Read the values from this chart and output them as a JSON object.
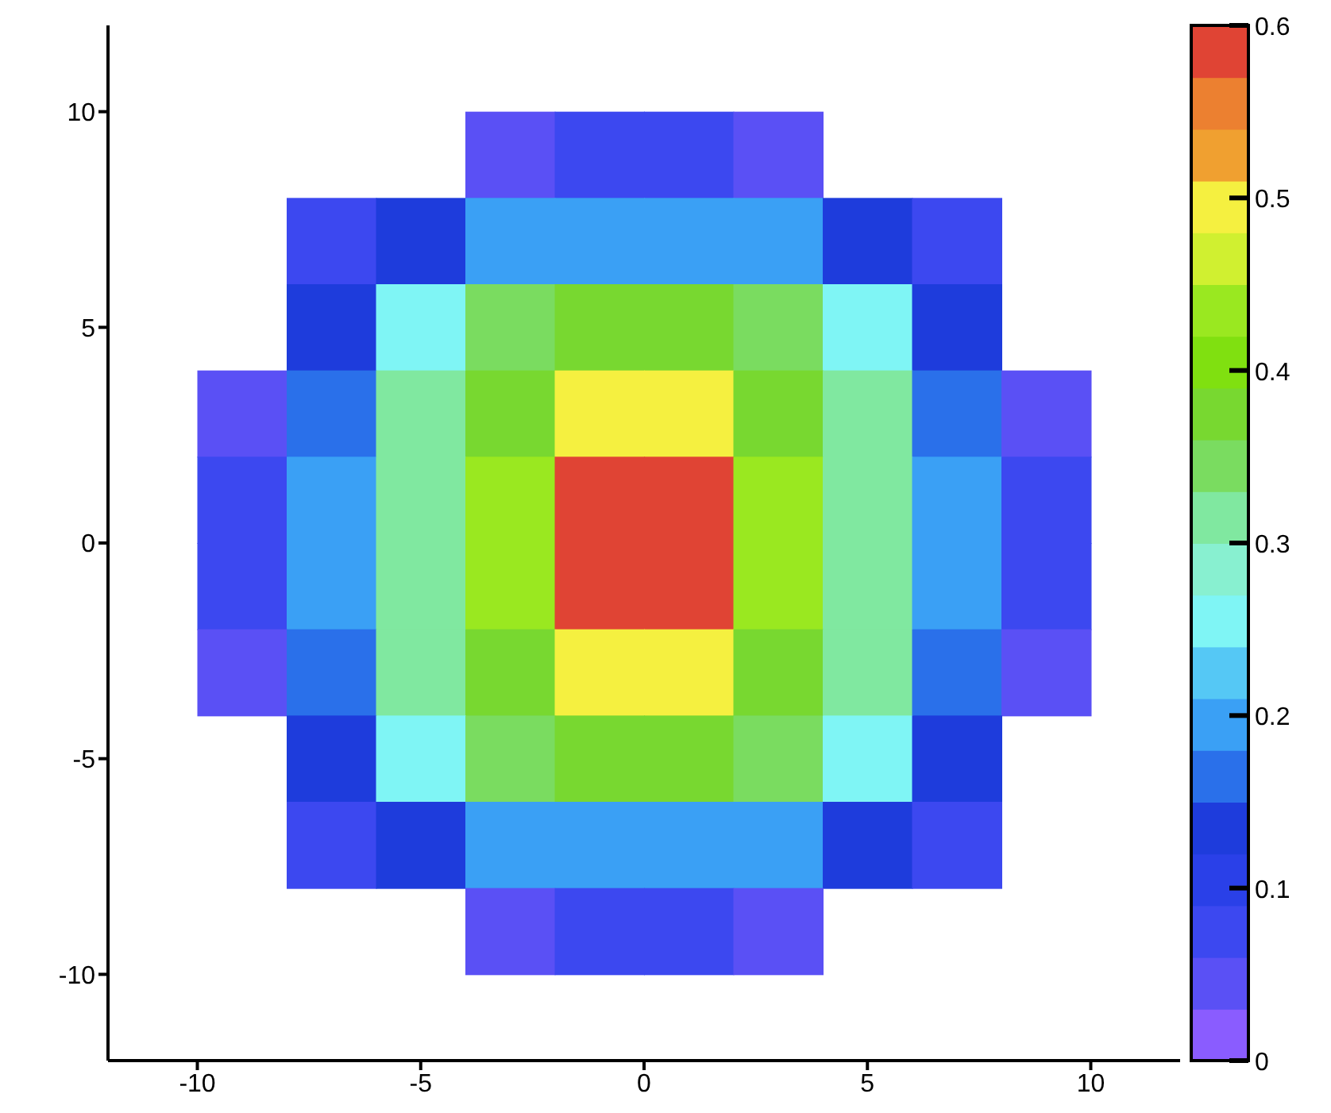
{
  "chart_data": {
    "type": "heatmap",
    "x": [
      -9,
      -7,
      -5,
      -3,
      -1,
      1,
      3,
      5,
      7,
      9
    ],
    "y": [
      9,
      7,
      5,
      3,
      1,
      -1,
      -3,
      -5,
      -7,
      -9
    ],
    "cells": [
      [
        null,
        null,
        null,
        0.05,
        0.06,
        0.06,
        0.05,
        null,
        null,
        null
      ],
      [
        null,
        0.06,
        0.12,
        0.18,
        0.2,
        0.2,
        0.18,
        0.12,
        0.06,
        null
      ],
      [
        null,
        0.12,
        0.24,
        0.33,
        0.36,
        0.36,
        0.33,
        0.24,
        0.12,
        null
      ],
      [
        0.05,
        0.16,
        0.3,
        0.38,
        0.5,
        0.5,
        0.38,
        0.3,
        0.16,
        0.05
      ],
      [
        0.06,
        0.18,
        0.32,
        0.42,
        0.57,
        0.57,
        0.42,
        0.32,
        0.18,
        0.06
      ],
      [
        0.06,
        0.18,
        0.32,
        0.42,
        0.57,
        0.57,
        0.42,
        0.32,
        0.18,
        0.06
      ],
      [
        0.05,
        0.16,
        0.3,
        0.38,
        0.5,
        0.5,
        0.38,
        0.3,
        0.16,
        0.05
      ],
      [
        null,
        0.12,
        0.24,
        0.33,
        0.36,
        0.36,
        0.33,
        0.24,
        0.12,
        null
      ],
      [
        null,
        0.06,
        0.12,
        0.18,
        0.2,
        0.2,
        0.18,
        0.12,
        0.06,
        null
      ],
      [
        null,
        null,
        null,
        0.05,
        0.06,
        0.06,
        0.05,
        null,
        null,
        null
      ]
    ],
    "xlim": [
      -12,
      12
    ],
    "xticks": [
      -10,
      -5,
      0,
      5,
      10
    ],
    "ylim": [
      -12,
      12
    ],
    "yticks": [
      -10,
      -5,
      0,
      5,
      10
    ],
    "clim": [
      0,
      0.6
    ],
    "cticks": [
      0,
      0.1,
      0.2,
      0.3,
      0.4,
      0.5,
      0.6
    ]
  }
}
